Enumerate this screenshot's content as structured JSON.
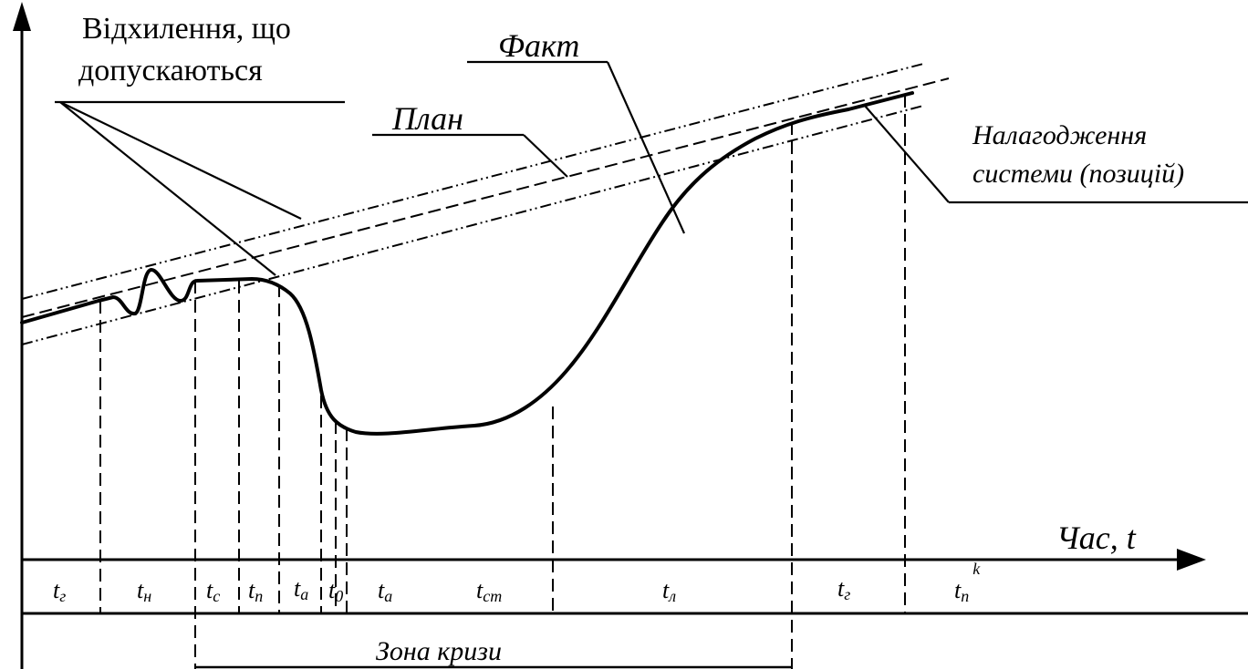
{
  "labels": {
    "deviations_line1": "Відхилення, що",
    "deviations_line2": "допускаються",
    "fact": "Факт",
    "plan": "План",
    "setup_line1": "Налагодження",
    "setup_line2": "системи (позицій)",
    "time_axis": "Час, t",
    "crisis_zone": "Зона кризи"
  },
  "segments": [
    {
      "main": "t",
      "sub": "г"
    },
    {
      "main": "t",
      "sub": "н"
    },
    {
      "main": "t",
      "sub": "c"
    },
    {
      "main": "t",
      "sub": "п"
    },
    {
      "main": "t",
      "sub": "a"
    },
    {
      "main": "t",
      "sub": "0"
    },
    {
      "main": "t",
      "sub": "a"
    },
    {
      "main": "t",
      "sub": "cm"
    },
    {
      "main": "t",
      "sub": "л"
    },
    {
      "main": "t",
      "sub": "г"
    },
    {
      "main": "t",
      "sub": "п",
      "sup": "k"
    }
  ]
}
